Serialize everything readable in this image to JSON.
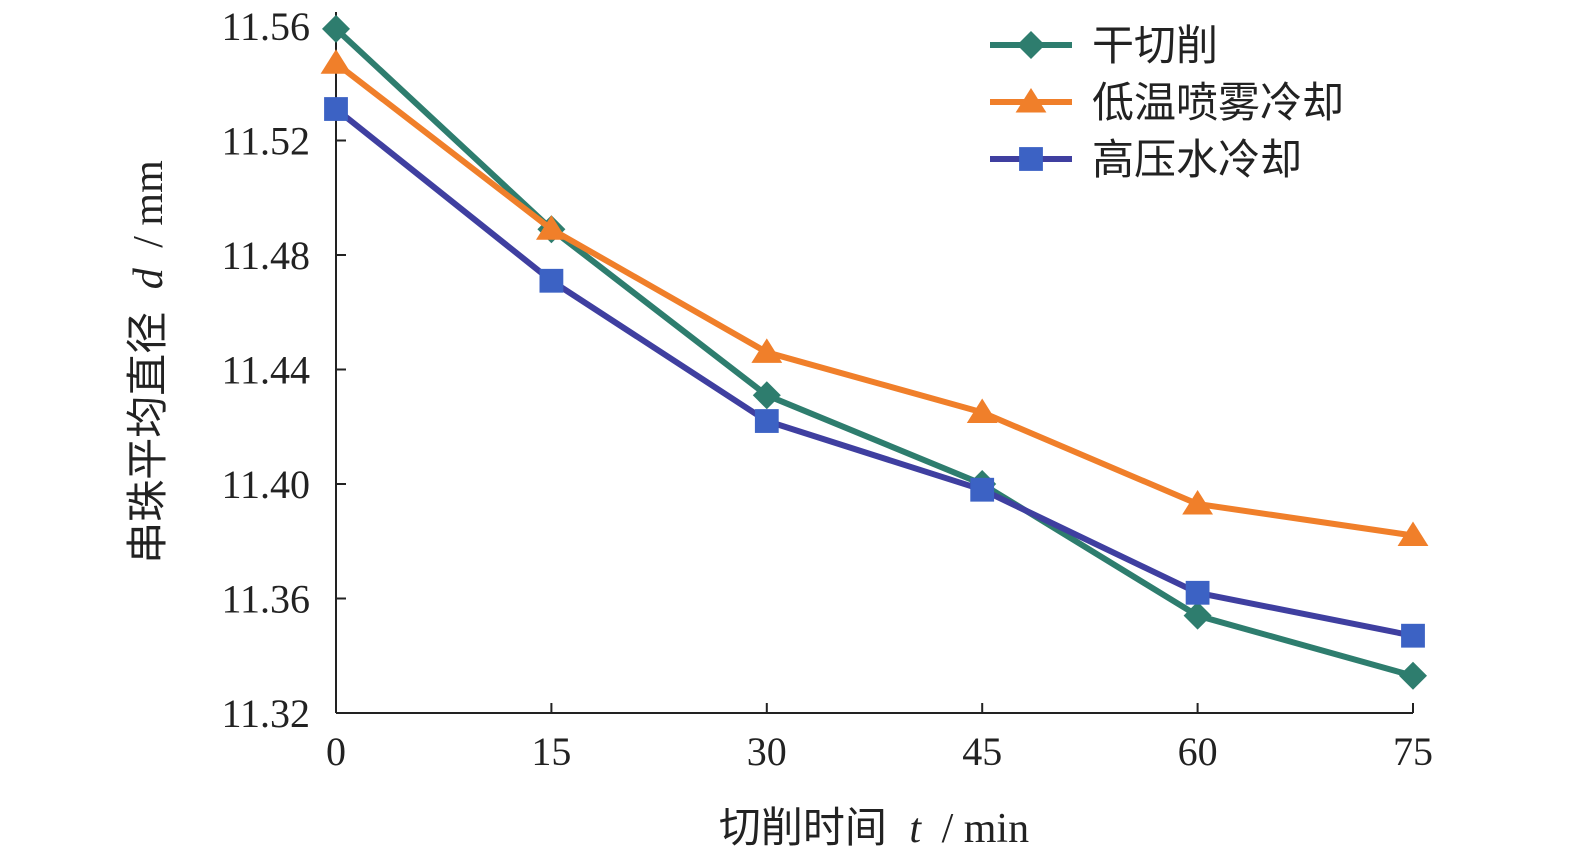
{
  "chart_data": {
    "type": "line",
    "title": "",
    "xlabel_text": "切削时间",
    "xlabel_symbol": "t",
    "xlabel_unit": "/ min",
    "ylabel_text": "串珠平均直径",
    "ylabel_symbol": "d",
    "ylabel_unit": "/ mm",
    "x": [
      0,
      15,
      30,
      45,
      60,
      75
    ],
    "x_ticks": [
      "0",
      "15",
      "30",
      "45",
      "60",
      "75"
    ],
    "y_ticks": [
      "11.32",
      "11.36",
      "11.40",
      "11.44",
      "11.48",
      "11.52",
      "11.56"
    ],
    "xlim": [
      0,
      75
    ],
    "ylim": [
      11.32,
      11.56
    ],
    "grid": false,
    "legend_position": "top-right",
    "series": [
      {
        "name": "干切削",
        "values": [
          11.559,
          11.489,
          11.431,
          11.4,
          11.354,
          11.333
        ],
        "color": "#2e7d6e",
        "marker": "diamond"
      },
      {
        "name": "低温喷雾冷却",
        "values": [
          11.547,
          11.489,
          11.446,
          11.425,
          11.393,
          11.382
        ],
        "color": "#f07f2a",
        "marker": "triangle"
      },
      {
        "name": "高压水冷却",
        "values": [
          11.531,
          11.471,
          11.422,
          11.398,
          11.362,
          11.347
        ],
        "color": "#3f3fa0",
        "marker_color": "#3c62c4",
        "marker": "square"
      }
    ]
  }
}
